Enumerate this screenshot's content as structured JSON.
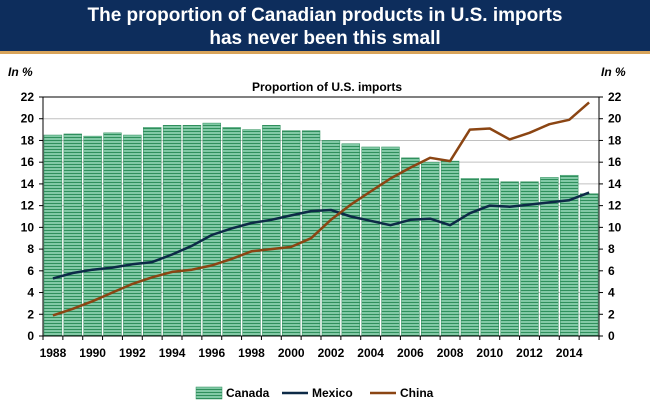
{
  "header": {
    "title_line1": "The proportion of Canadian products in U.S. imports",
    "title_line2": "has never been this small"
  },
  "colors": {
    "banner": "#0d2d5c",
    "banner_border": "#d8a45a",
    "canada_fill": "#82c9a6",
    "canada_stripe": "#2f8f5c",
    "mexico": "#0d2a47",
    "china": "#8b4513",
    "grid": "#c0c0c0"
  },
  "chart_data": {
    "type": "bar",
    "title": "Proportion of U.S. imports",
    "ylabel_left": "In %",
    "ylabel_right": "In %",
    "xlabel": "",
    "ylim": [
      0,
      22
    ],
    "yticks": [
      0,
      2,
      4,
      6,
      8,
      10,
      12,
      14,
      16,
      18,
      20,
      22
    ],
    "x": [
      1988,
      1989,
      1990,
      1991,
      1992,
      1993,
      1994,
      1995,
      1996,
      1997,
      1998,
      1999,
      2000,
      2001,
      2002,
      2003,
      2004,
      2005,
      2006,
      2007,
      2008,
      2009,
      2010,
      2011,
      2012,
      2013,
      2014,
      2015
    ],
    "xticks": [
      "1988",
      "1990",
      "1992",
      "1994",
      "1996",
      "1998",
      "2000",
      "2002",
      "2004",
      "2006",
      "2008",
      "2010",
      "2012",
      "2014"
    ],
    "grid": true,
    "legend_position": "bottom",
    "series": [
      {
        "name": "Canada",
        "type": "bar",
        "values": [
          18.5,
          18.6,
          18.4,
          18.7,
          18.5,
          19.2,
          19.4,
          19.4,
          19.6,
          19.2,
          19.0,
          19.4,
          18.9,
          18.9,
          18.0,
          17.7,
          17.4,
          17.4,
          16.4,
          16.0,
          16.1,
          14.5,
          14.5,
          14.2,
          14.2,
          14.6,
          14.8,
          13.1
        ]
      },
      {
        "name": "Mexico",
        "type": "line",
        "values": [
          5.3,
          5.8,
          6.1,
          6.3,
          6.6,
          6.8,
          7.5,
          8.3,
          9.3,
          9.9,
          10.4,
          10.7,
          11.1,
          11.5,
          11.6,
          11.0,
          10.6,
          10.2,
          10.7,
          10.8,
          10.2,
          11.3,
          12.0,
          11.9,
          12.1,
          12.3,
          12.5,
          13.2
        ]
      },
      {
        "name": "China",
        "type": "line",
        "values": [
          1.9,
          2.5,
          3.2,
          4.0,
          4.8,
          5.4,
          5.9,
          6.1,
          6.5,
          7.1,
          7.8,
          8.0,
          8.2,
          9.0,
          10.7,
          12.1,
          13.3,
          14.5,
          15.5,
          16.4,
          16.1,
          19.0,
          19.1,
          18.1,
          18.7,
          19.5,
          19.9,
          21.5
        ]
      }
    ]
  }
}
